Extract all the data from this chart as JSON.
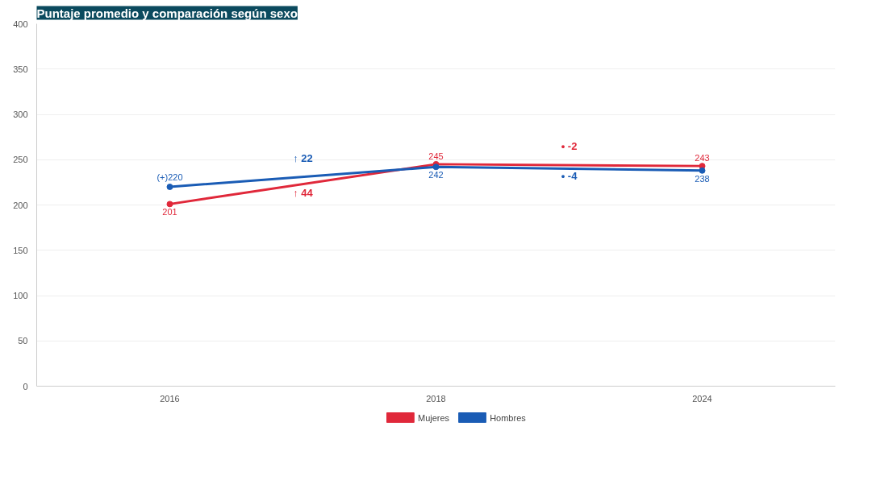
{
  "chart_data": {
    "type": "line",
    "title": "Puntaje promedio y comparación según sexo",
    "categories": [
      "2016",
      "2018",
      "2024"
    ],
    "series": [
      {
        "name": "Mujeres",
        "color": "#e0283a",
        "values": [
          201,
          245,
          243
        ],
        "value_labels": [
          "201",
          "245",
          "243"
        ]
      },
      {
        "name": "Hombres",
        "color": "#1a5cb5",
        "values": [
          220,
          242,
          238
        ],
        "value_labels": [
          "(+)220",
          "242",
          "238"
        ]
      }
    ],
    "annotations": [
      "↑ 22",
      "↑ 44",
      "• -2",
      "• -4"
    ],
    "ylim": [
      0,
      400
    ],
    "yticks": [
      0,
      50,
      100,
      150,
      200,
      250,
      300,
      350,
      400
    ],
    "grid": "y",
    "legend": "bottom",
    "marker": "circle",
    "line_style": "solid"
  }
}
